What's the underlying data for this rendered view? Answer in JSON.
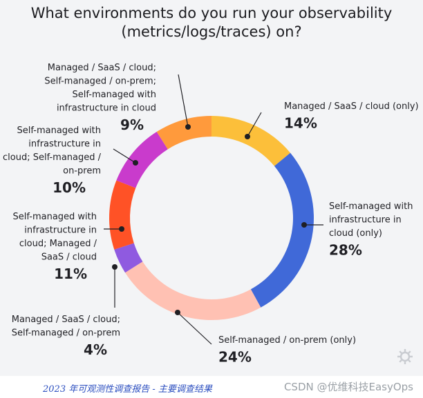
{
  "title_line1": "What environments do you run your observability",
  "title_line2": "(metrics/logs/traces) on?",
  "chart_data": {
    "type": "pie",
    "title": "What environments do you run your observability (metrics/logs/traces) on?",
    "slices": [
      {
        "label": "Managed / SaaS / cloud (only)",
        "value": 14,
        "pct_text": "14%",
        "color": "#fcbf3a",
        "lines": [
          "Managed / SaaS / cloud (only)"
        ]
      },
      {
        "label": "Self-managed with infrastructure in cloud (only)",
        "value": 28,
        "pct_text": "28%",
        "color": "#4069d8",
        "lines": [
          "Self-managed with",
          "infrastructure in",
          "cloud (only)"
        ]
      },
      {
        "label": "Self-managed / on-prem (only)",
        "value": 24,
        "pct_text": "24%",
        "color": "#ffc1b3",
        "lines": [
          "Self-managed / on-prem (only)"
        ]
      },
      {
        "label": "Managed / SaaS / cloud; Self-managed / on-prem",
        "value": 4,
        "pct_text": "4%",
        "color": "#8f5ae0",
        "lines": [
          "Managed / SaaS / cloud;",
          "Self-managed / on-prem"
        ]
      },
      {
        "label": "Self-managed with infrastructure in cloud; Managed / SaaS / cloud",
        "value": 11,
        "pct_text": "11%",
        "color": "#ff5226",
        "lines": [
          "Self-managed with",
          "infrastructure in",
          "cloud; Managed /",
          "SaaS / cloud"
        ]
      },
      {
        "label": "Self-managed with infrastructure in cloud; Self-managed / on-prem",
        "value": 10,
        "pct_text": "10%",
        "color": "#c93bcc",
        "lines": [
          "Self-managed with",
          "infrastructure in",
          "cloud; Self-managed /",
          "on-prem"
        ]
      },
      {
        "label": "Managed / SaaS / cloud; Self-managed / on-prem; Self-managed with infrastructure in cloud",
        "value": 9,
        "pct_text": "9%",
        "color": "#ff9a3c",
        "lines": [
          "Managed / SaaS / cloud;",
          "Self-managed / on-prem;",
          "Self-managed with",
          "infrastructure in cloud"
        ]
      }
    ]
  },
  "footnote": "2023 年可观测性调查报告 - 主要调查结果",
  "watermark": "CSDN @优维科技EasyOps",
  "logo_icon": "gear-logo-icon"
}
